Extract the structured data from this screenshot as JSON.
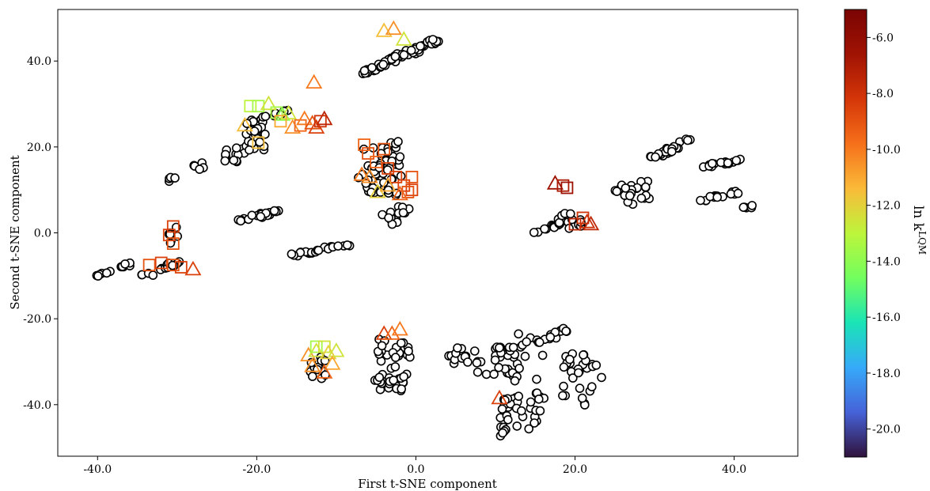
{
  "chart_data": {
    "type": "scatter",
    "title": "",
    "xlabel": "First t-SNE component",
    "ylabel": "Second t-SNE component",
    "xlim": [
      -45.0,
      48.0
    ],
    "ylim": [
      -52.0,
      52.0
    ],
    "xticks": [
      -40.0,
      -20.0,
      0.0,
      20.0,
      40.0
    ],
    "yticks": [
      -40.0,
      -20.0,
      0.0,
      20.0,
      40.0
    ],
    "xtick_labels": [
      "-40.0",
      "-20.0",
      "0.0",
      "20.0",
      "40.0"
    ],
    "ytick_labels": [
      "-40.0",
      "-20.0",
      "0.0",
      "20.0",
      "40.0"
    ],
    "grid": false,
    "colorbar": {
      "label": "ln k",
      "label_superscript": "LQM",
      "range": [
        -21.0,
        -5.0
      ],
      "ticks": [
        -6.0,
        -8.0,
        -10.0,
        -12.0,
        -14.0,
        -16.0,
        -18.0,
        -20.0
      ],
      "tick_labels": [
        "-6.0",
        "-8.0",
        "-10.0",
        "-12.0",
        "-14.0",
        "-16.0",
        "-18.0",
        "-20.0"
      ],
      "colormap": "turbo"
    },
    "unlabeled_clusters": [
      {
        "x": [
          -6.5,
          3.0
        ],
        "y": [
          37.5,
          45.0
        ],
        "n": 70
      },
      {
        "x": [
          -21.5,
          -19.0
        ],
        "y": [
          19.0,
          26.5
        ],
        "n": 30
      },
      {
        "x": [
          -19.5,
          -16.0
        ],
        "y": [
          26.5,
          28.5
        ],
        "n": 8
      },
      {
        "x": [
          -24.5,
          -22.5
        ],
        "y": [
          16.5,
          20.0
        ],
        "n": 10
      },
      {
        "x": [
          -28.0,
          -26.5
        ],
        "y": [
          14.5,
          16.0
        ],
        "n": 6
      },
      {
        "x": [
          -31.0,
          -30.0
        ],
        "y": [
          12.0,
          13.5
        ],
        "n": 4
      },
      {
        "x": [
          -7.0,
          -2.0
        ],
        "y": [
          9.0,
          21.0
        ],
        "n": 60
      },
      {
        "x": [
          -4.0,
          -1.0
        ],
        "y": [
          2.5,
          6.5
        ],
        "n": 14
      },
      {
        "x": [
          -22.5,
          -17.5
        ],
        "y": [
          3.0,
          5.0
        ],
        "n": 18
      },
      {
        "x": [
          -15.5,
          -8.5
        ],
        "y": [
          -5.0,
          -3.0
        ],
        "n": 22
      },
      {
        "x": [
          -31.0,
          -30.0
        ],
        "y": [
          -2.0,
          1.5
        ],
        "n": 8
      },
      {
        "x": [
          -34.0,
          -30.0
        ],
        "y": [
          -10.0,
          -7.0
        ],
        "n": 14
      },
      {
        "x": [
          -37.5,
          -35.5
        ],
        "y": [
          -8.0,
          -7.0
        ],
        "n": 6
      },
      {
        "x": [
          -40.0,
          -38.5
        ],
        "y": [
          -10.0,
          -9.0
        ],
        "n": 6
      },
      {
        "x": [
          15.0,
          18.0
        ],
        "y": [
          0.0,
          2.0
        ],
        "n": 12
      },
      {
        "x": [
          18.0,
          21.5
        ],
        "y": [
          1.0,
          4.5
        ],
        "n": 14
      },
      {
        "x": [
          25.5,
          29.0
        ],
        "y": [
          7.0,
          12.5
        ],
        "n": 24
      },
      {
        "x": [
          29.0,
          34.5
        ],
        "y": [
          17.0,
          21.5
        ],
        "n": 26
      },
      {
        "x": [
          36.0,
          41.0
        ],
        "y": [
          15.5,
          17.0
        ],
        "n": 16
      },
      {
        "x": [
          36.0,
          40.0
        ],
        "y": [
          7.5,
          9.5
        ],
        "n": 14
      },
      {
        "x": [
          41.0,
          42.5
        ],
        "y": [
          5.5,
          6.5
        ],
        "n": 5
      },
      {
        "x": [
          -13.5,
          -11.5
        ],
        "y": [
          -34.0,
          -29.0
        ],
        "n": 12
      },
      {
        "x": [
          -5.0,
          -1.0
        ],
        "y": [
          -37.0,
          -25.0
        ],
        "n": 45
      },
      {
        "x": [
          4.0,
          7.0
        ],
        "y": [
          -31.0,
          -26.0
        ],
        "n": 10
      },
      {
        "x": [
          6.5,
          13.0
        ],
        "y": [
          -34.0,
          -26.0
        ],
        "n": 34
      },
      {
        "x": [
          12.5,
          16.0
        ],
        "y": [
          -40.0,
          -23.0
        ],
        "n": 14
      },
      {
        "x": [
          15.0,
          20.0
        ],
        "y": [
          -26.0,
          -21.5
        ],
        "n": 14
      },
      {
        "x": [
          18.0,
          23.0
        ],
        "y": [
          -40.0,
          -28.0
        ],
        "n": 30
      },
      {
        "x": [
          10.5,
          16.0
        ],
        "y": [
          -47.0,
          -37.5
        ],
        "n": 34
      }
    ],
    "labeled_points": [
      {
        "x": -4.0,
        "y": 47.0,
        "v": -11.5,
        "m": "tri"
      },
      {
        "x": -2.8,
        "y": 47.5,
        "v": -10.5,
        "m": "tri"
      },
      {
        "x": -1.5,
        "y": 45.0,
        "v": -12.5,
        "m": "tri"
      },
      {
        "x": -12.8,
        "y": 35.0,
        "v": -10.0,
        "m": "tri"
      },
      {
        "x": -20.8,
        "y": 29.5,
        "v": -13.0,
        "m": "sq"
      },
      {
        "x": -19.8,
        "y": 29.5,
        "v": -13.5,
        "m": "sq"
      },
      {
        "x": -18.5,
        "y": 30.0,
        "v": -12.5,
        "m": "tri"
      },
      {
        "x": -17.5,
        "y": 28.0,
        "v": -13.5,
        "m": "sq"
      },
      {
        "x": -16.8,
        "y": 27.5,
        "v": -14.0,
        "m": "tri"
      },
      {
        "x": -16.0,
        "y": 27.8,
        "v": -12.5,
        "m": "tri"
      },
      {
        "x": -17.0,
        "y": 26.0,
        "v": -11.0,
        "m": "sq"
      },
      {
        "x": -15.5,
        "y": 24.5,
        "v": -10.5,
        "m": "tri"
      },
      {
        "x": -14.5,
        "y": 25.0,
        "v": -9.5,
        "m": "sq"
      },
      {
        "x": -14.0,
        "y": 26.5,
        "v": -10.0,
        "m": "tri"
      },
      {
        "x": -13.0,
        "y": 25.5,
        "v": -9.0,
        "m": "tri"
      },
      {
        "x": -12.5,
        "y": 24.5,
        "v": -8.5,
        "m": "tri"
      },
      {
        "x": -12.0,
        "y": 26.0,
        "v": -8.0,
        "m": "sq"
      },
      {
        "x": -11.5,
        "y": 26.5,
        "v": -7.5,
        "m": "tri"
      },
      {
        "x": -21.5,
        "y": 25.0,
        "v": -11.5,
        "m": "tri"
      },
      {
        "x": -19.8,
        "y": 21.0,
        "v": -11.5,
        "m": "sq"
      },
      {
        "x": -6.5,
        "y": 20.5,
        "v": -9.5,
        "m": "sq"
      },
      {
        "x": -6.0,
        "y": 18.5,
        "v": -9.0,
        "m": "sq"
      },
      {
        "x": -5.0,
        "y": 16.5,
        "v": -9.5,
        "m": "sq"
      },
      {
        "x": -4.0,
        "y": 19.5,
        "v": -9.0,
        "m": "sq"
      },
      {
        "x": -3.5,
        "y": 15.0,
        "v": -8.5,
        "m": "sq"
      },
      {
        "x": -2.5,
        "y": 13.0,
        "v": -8.5,
        "m": "sq"
      },
      {
        "x": -1.5,
        "y": 11.0,
        "v": -8.5,
        "m": "sq"
      },
      {
        "x": -0.5,
        "y": 13.0,
        "v": -9.0,
        "m": "sq"
      },
      {
        "x": -0.5,
        "y": 10.0,
        "v": -8.5,
        "m": "sq"
      },
      {
        "x": -1.0,
        "y": 9.5,
        "v": -9.0,
        "m": "sq"
      },
      {
        "x": -6.8,
        "y": 13.5,
        "v": -10.0,
        "m": "tri"
      },
      {
        "x": -5.8,
        "y": 13.0,
        "v": -10.5,
        "m": "tri"
      },
      {
        "x": -4.8,
        "y": 9.5,
        "v": -12.0,
        "m": "tri"
      },
      {
        "x": -3.5,
        "y": 11.0,
        "v": -11.0,
        "m": "tri"
      },
      {
        "x": -2.0,
        "y": 9.0,
        "v": -9.5,
        "m": "tri"
      },
      {
        "x": -30.5,
        "y": 1.5,
        "v": -8.5,
        "m": "sq"
      },
      {
        "x": -31.0,
        "y": -0.5,
        "v": -8.5,
        "m": "sq"
      },
      {
        "x": -30.5,
        "y": -2.5,
        "v": -9.0,
        "m": "sq"
      },
      {
        "x": -33.5,
        "y": -7.5,
        "v": -9.0,
        "m": "sq"
      },
      {
        "x": -32.0,
        "y": -7.0,
        "v": -8.5,
        "m": "sq"
      },
      {
        "x": -30.5,
        "y": -7.5,
        "v": -9.0,
        "m": "sq"
      },
      {
        "x": -29.5,
        "y": -8.0,
        "v": -8.5,
        "m": "sq"
      },
      {
        "x": -28.0,
        "y": -8.5,
        "v": -8.5,
        "m": "tri"
      },
      {
        "x": 17.5,
        "y": 11.5,
        "v": -6.5,
        "m": "tri"
      },
      {
        "x": 18.5,
        "y": 11.0,
        "v": -7.0,
        "m": "sq"
      },
      {
        "x": 19.0,
        "y": 10.5,
        "v": -6.5,
        "m": "sq"
      },
      {
        "x": 20.0,
        "y": 2.0,
        "v": -7.5,
        "m": "sq"
      },
      {
        "x": 21.0,
        "y": 3.5,
        "v": -8.0,
        "m": "sq"
      },
      {
        "x": 21.5,
        "y": 2.5,
        "v": -8.0,
        "m": "tri"
      },
      {
        "x": 22.0,
        "y": 2.0,
        "v": -7.5,
        "m": "tri"
      },
      {
        "x": -13.5,
        "y": -28.5,
        "v": -10.5,
        "m": "tri"
      },
      {
        "x": -12.5,
        "y": -27.5,
        "v": -12.5,
        "m": "tri"
      },
      {
        "x": -12.5,
        "y": -26.5,
        "v": -13.5,
        "m": "sq"
      },
      {
        "x": -11.5,
        "y": -26.5,
        "v": -12.5,
        "m": "sq"
      },
      {
        "x": -11.0,
        "y": -28.0,
        "v": -12.0,
        "m": "tri"
      },
      {
        "x": -10.0,
        "y": -27.5,
        "v": -12.5,
        "m": "tri"
      },
      {
        "x": -10.5,
        "y": -30.5,
        "v": -11.0,
        "m": "tri"
      },
      {
        "x": -11.5,
        "y": -32.5,
        "v": -9.5,
        "m": "tri"
      },
      {
        "x": -13.0,
        "y": -31.0,
        "v": -10.5,
        "m": "tri"
      },
      {
        "x": -4.0,
        "y": -23.5,
        "v": -8.5,
        "m": "tri"
      },
      {
        "x": -3.0,
        "y": -23.5,
        "v": -9.5,
        "m": "tri"
      },
      {
        "x": -2.0,
        "y": -22.5,
        "v": -10.0,
        "m": "tri"
      },
      {
        "x": 10.5,
        "y": -38.5,
        "v": -8.5,
        "m": "tri"
      }
    ]
  }
}
